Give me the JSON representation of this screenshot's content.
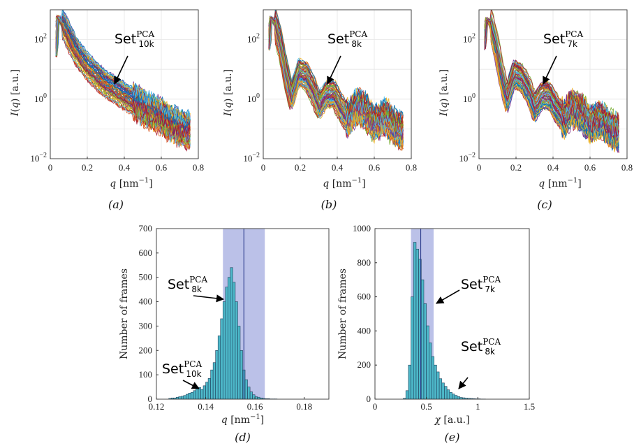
{
  "chart_data": [
    {
      "panel": "a",
      "type": "line",
      "caption": "(a)",
      "ylabel": "I(q) [a.u.]",
      "xlabel": "q [nm^-1]",
      "xlim": [
        0,
        0.8
      ],
      "ylim": [
        0.01,
        1000
      ],
      "yscale": "log",
      "xticks": [
        "0",
        "0.2",
        "0.4",
        "0.6",
        "0.8"
      ],
      "yticks": [
        "10^-2",
        "10^0",
        "10^2"
      ],
      "grid": true,
      "annotation": {
        "main": "Set",
        "sup": "PCA",
        "sub": "10k"
      },
      "profile": {
        "x": [
          0.03,
          0.04,
          0.05,
          0.07,
          0.1,
          0.13,
          0.16,
          0.2,
          0.25,
          0.3,
          0.35,
          0.4,
          0.45,
          0.5,
          0.55,
          0.6,
          0.65,
          0.7,
          0.76
        ],
        "y": [
          30,
          600,
          500,
          300,
          120,
          50,
          25,
          12,
          6,
          3,
          2,
          1.2,
          0.8,
          0.5,
          0.35,
          0.25,
          0.15,
          0.1,
          0.08
        ]
      }
    },
    {
      "panel": "b",
      "type": "line",
      "caption": "(b)",
      "ylabel": "I(q) [a.u.]",
      "xlabel": "q [nm^-1]",
      "xlim": [
        0,
        0.8
      ],
      "ylim": [
        0.01,
        1000
      ],
      "yscale": "log",
      "xticks": [
        "0",
        "0.2",
        "0.4",
        "0.6",
        "0.8"
      ],
      "yticks": [
        "10^-2",
        "10^0",
        "10^2"
      ],
      "grid": true,
      "annotation": {
        "main": "Set",
        "sup": "PCA",
        "sub": "8k"
      },
      "profile": {
        "x": [
          0.03,
          0.04,
          0.06,
          0.09,
          0.12,
          0.15,
          0.19,
          0.23,
          0.27,
          0.3,
          0.34,
          0.38,
          0.42,
          0.46,
          0.5,
          0.55,
          0.6,
          0.66,
          0.72,
          0.76
        ],
        "y": [
          50,
          550,
          400,
          80,
          8,
          1.2,
          8,
          6,
          2,
          0.6,
          1.5,
          1.5,
          0.5,
          0.2,
          0.6,
          0.4,
          0.15,
          0.25,
          0.1,
          0.08
        ]
      }
    },
    {
      "panel": "c",
      "type": "line",
      "caption": "(c)",
      "ylabel": "I(q) [a.u.]",
      "xlabel": "q [nm^-1]",
      "xlim": [
        0,
        0.8
      ],
      "ylim": [
        0.01,
        1000
      ],
      "yscale": "log",
      "xticks": [
        "0",
        "0.2",
        "0.4",
        "0.6",
        "0.8"
      ],
      "yticks": [
        "10^-2",
        "10^0",
        "10^2"
      ],
      "grid": true,
      "annotation": {
        "main": "Set",
        "sup": "PCA",
        "sub": "7k"
      },
      "profile": {
        "x": [
          0.03,
          0.04,
          0.06,
          0.09,
          0.12,
          0.15,
          0.19,
          0.23,
          0.27,
          0.3,
          0.34,
          0.38,
          0.42,
          0.46,
          0.5,
          0.55,
          0.6,
          0.66,
          0.72,
          0.76
        ],
        "y": [
          50,
          500,
          380,
          70,
          7,
          1.0,
          7,
          5,
          1.8,
          0.5,
          1.3,
          1.3,
          0.45,
          0.2,
          0.5,
          0.35,
          0.14,
          0.2,
          0.09,
          0.07
        ]
      }
    },
    {
      "panel": "d",
      "type": "bar",
      "caption": "(d)",
      "ylabel": "Number of frames",
      "xlabel": "q [nm^-1]",
      "xlim": [
        0.12,
        0.19
      ],
      "ylim": [
        0,
        700
      ],
      "xticks": [
        "0.12",
        "0.14",
        "0.16",
        "0.18"
      ],
      "yticks": [
        "0",
        "100",
        "200",
        "300",
        "400",
        "500",
        "600",
        "700"
      ],
      "highlight_range": [
        0.147,
        0.164
      ],
      "mean_line": 0.1555,
      "bin_width": 0.001,
      "bin_start": 0.125,
      "values": [
        3,
        5,
        5,
        8,
        10,
        12,
        15,
        20,
        25,
        28,
        35,
        42,
        48,
        40,
        55,
        70,
        85,
        120,
        150,
        200,
        260,
        330,
        400,
        460,
        500,
        540,
        480,
        400,
        300,
        200,
        120,
        80,
        50,
        30,
        18,
        10,
        8,
        5,
        3,
        2,
        2,
        1,
        1,
        1,
        0,
        0,
        0,
        0,
        0
      ],
      "annotations": [
        {
          "main": "Set",
          "sup": "PCA",
          "sub": "8k"
        },
        {
          "main": "Set",
          "sup": "PCA",
          "sub": "10k"
        }
      ]
    },
    {
      "panel": "e",
      "type": "bar",
      "caption": "(e)",
      "ylabel": "Number of frames",
      "xlabel": "χ [a.u.]",
      "xlim": [
        0,
        1.5
      ],
      "ylim": [
        0,
        1000
      ],
      "xticks": [
        "0",
        "0.5",
        "1",
        "1.5"
      ],
      "yticks": [
        "0",
        "200",
        "400",
        "600",
        "800",
        "1000"
      ],
      "highlight_range": [
        0.35,
        0.57
      ],
      "mean_line": 0.445,
      "bin_width": 0.025,
      "bin_start": 0.275,
      "values": [
        5,
        50,
        200,
        600,
        920,
        880,
        820,
        700,
        560,
        430,
        330,
        250,
        200,
        160,
        120,
        95,
        75,
        55,
        40,
        30,
        22,
        15,
        10,
        8,
        6,
        5,
        4,
        3,
        2,
        2,
        1,
        1
      ],
      "annotations": [
        {
          "main": "Set",
          "sup": "PCA",
          "sub": "7k"
        },
        {
          "main": "Set",
          "sup": "PCA",
          "sub": "8k"
        }
      ]
    }
  ]
}
